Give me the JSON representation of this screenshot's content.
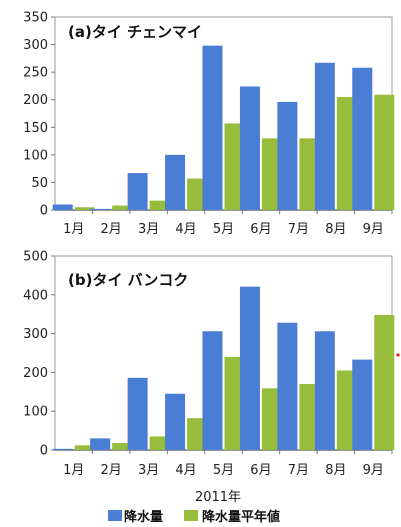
{
  "chart_data": [
    {
      "type": "bar",
      "title": "(a)タイ チェンマイ",
      "categories": [
        "1月",
        "2月",
        "3月",
        "4月",
        "5月",
        "6月",
        "7月",
        "8月",
        "9月"
      ],
      "series": [
        {
          "name": "降水量",
          "values": [
            10,
            2,
            67,
            100,
            298,
            224,
            196,
            267,
            258
          ]
        },
        {
          "name": "降水量平年値",
          "values": [
            5,
            8,
            17,
            57,
            157,
            130,
            130,
            205,
            209
          ]
        }
      ],
      "ylim": [
        0,
        350
      ],
      "yticks": [
        0,
        50,
        100,
        150,
        200,
        250,
        300,
        350
      ],
      "grid": false
    },
    {
      "type": "bar",
      "title": "(b)タイ バンコク",
      "categories": [
        "1月",
        "2月",
        "3月",
        "4月",
        "5月",
        "6月",
        "7月",
        "8月",
        "9月"
      ],
      "series": [
        {
          "name": "降水量",
          "values": [
            3,
            30,
            186,
            145,
            306,
            421,
            328,
            306,
            233
          ]
        },
        {
          "name": "降水量平年値",
          "values": [
            12,
            18,
            35,
            82,
            240,
            159,
            170,
            205,
            348
          ]
        }
      ],
      "ylim": [
        0,
        500
      ],
      "yticks": [
        0,
        100,
        200,
        300,
        400,
        500
      ],
      "grid": false
    }
  ],
  "xlabel": "2011年",
  "legend": [
    {
      "label": "降水量",
      "color": "#4a7ed4"
    },
    {
      "label": "降水量平年値",
      "color": "#98bd3c"
    }
  ],
  "colors": {
    "rain": "#4a7ed4",
    "normal": "#98bd3c"
  }
}
